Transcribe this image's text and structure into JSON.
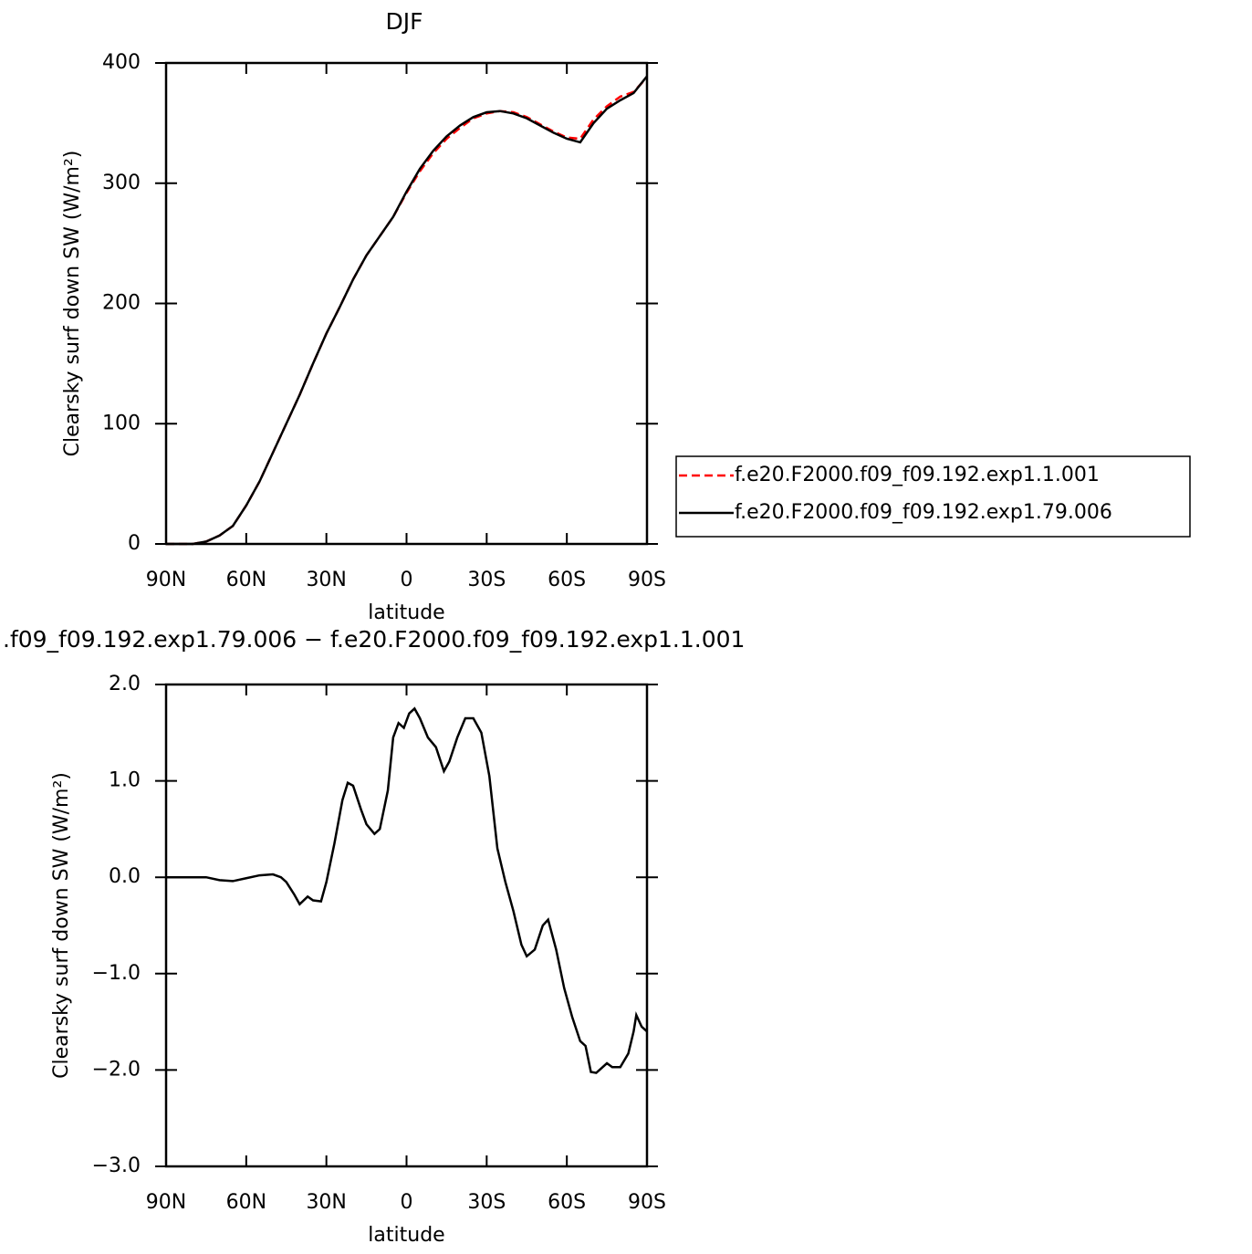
{
  "chart_data": [
    {
      "type": "line",
      "title": "DJF",
      "xlabel": "latitude",
      "ylabel": "Clearsky surf down SW (W/m²)",
      "xlim": [
        90,
        -90
      ],
      "ylim": [
        0,
        400
      ],
      "xticks": [
        {
          "value": 90,
          "label": "90N"
        },
        {
          "value": 60,
          "label": "60N"
        },
        {
          "value": 30,
          "label": "30N"
        },
        0,
        {
          "value": -30,
          "label": "30S"
        },
        {
          "value": -60,
          "label": "60S"
        },
        {
          "value": -90,
          "label": "90S"
        }
      ],
      "yticks": [
        0,
        100,
        200,
        300,
        400
      ],
      "legend": "right",
      "x": [
        90,
        85,
        80,
        75,
        70,
        65,
        60,
        55,
        50,
        45,
        40,
        35,
        30,
        25,
        20,
        15,
        10,
        5,
        0,
        -5,
        -10,
        -15,
        -20,
        -25,
        -30,
        -35,
        -40,
        -45,
        -50,
        -55,
        -60,
        -65,
        -70,
        -75,
        -80,
        -85,
        -90
      ],
      "series": [
        {
          "name": "f.e20.F2000.f09_f09.192.exp1.1.001",
          "color": "#ff0000",
          "dash": "dashed",
          "values": [
            0,
            0,
            0,
            2,
            7,
            15,
            32,
            52,
            76,
            100,
            124,
            150,
            175,
            197,
            220,
            240,
            256,
            272,
            292,
            310,
            325,
            337,
            346,
            354,
            358,
            360,
            359,
            355,
            349,
            343,
            338,
            337,
            353,
            364,
            372,
            376,
            388
          ]
        },
        {
          "name": "f.e20.F2000.f09_f09.192.exp1.79.006",
          "color": "#000000",
          "dash": "solid",
          "values": [
            0,
            0,
            0,
            2,
            7,
            15,
            32,
            52,
            76,
            100,
            124,
            150,
            175,
            197,
            220,
            240,
            256,
            272,
            293,
            312,
            327,
            339,
            348,
            355,
            359,
            360,
            358,
            354,
            348,
            342,
            337,
            334,
            350,
            362,
            369,
            375,
            389
          ]
        }
      ]
    },
    {
      "type": "line",
      "title": ".f09_f09.192.exp1.79.006 − f.e20.F2000.f09_f09.192.exp1.1.001",
      "xlabel": "latitude",
      "ylabel": "Clearsky surf down SW (W/m²)",
      "xlim": [
        90,
        -90
      ],
      "ylim": [
        -3,
        2
      ],
      "xticks": [
        {
          "value": 90,
          "label": "90N"
        },
        {
          "value": 60,
          "label": "60N"
        },
        {
          "value": 30,
          "label": "30N"
        },
        0,
        {
          "value": -30,
          "label": "30S"
        },
        {
          "value": -60,
          "label": "60S"
        },
        {
          "value": -90,
          "label": "90S"
        }
      ],
      "yticks": [
        {
          "value": -3,
          "label": "−3.0"
        },
        {
          "value": -2,
          "label": "−2.0"
        },
        {
          "value": -1,
          "label": "−1.0"
        },
        {
          "value": 0,
          "label": "0.0"
        },
        {
          "value": 1,
          "label": "1.0"
        },
        {
          "value": 2,
          "label": "2.0"
        }
      ],
      "x": [
        90,
        80,
        75,
        70,
        65,
        60,
        55,
        50,
        47,
        45,
        42,
        40,
        37,
        35,
        32,
        30,
        27,
        24,
        22,
        20,
        17,
        15,
        12,
        10,
        7,
        5,
        3,
        1,
        -1,
        -3,
        -5,
        -8,
        -11,
        -14,
        -16,
        -19,
        -22,
        -25,
        -28,
        -31,
        -34,
        -37,
        -40,
        -43,
        -45,
        -48,
        -51,
        -53,
        -56,
        -59,
        -62,
        -65,
        -67,
        -69,
        -71,
        -73,
        -75,
        -77,
        -80,
        -83,
        -85,
        -86,
        -88,
        -90
      ],
      "series": [
        {
          "color": "#000000",
          "dash": "solid",
          "values": [
            0,
            0,
            0,
            -0.03,
            -0.04,
            -0.01,
            0.02,
            0.03,
            0,
            -0.05,
            -0.18,
            -0.28,
            -0.2,
            -0.24,
            -0.25,
            -0.05,
            0.35,
            0.8,
            0.98,
            0.95,
            0.7,
            0.55,
            0.45,
            0.5,
            0.9,
            1.45,
            1.6,
            1.55,
            1.7,
            1.75,
            1.65,
            1.45,
            1.35,
            1.1,
            1.2,
            1.45,
            1.65,
            1.65,
            1.5,
            1.05,
            0.3,
            -0.05,
            -0.35,
            -0.7,
            -0.82,
            -0.75,
            -0.5,
            -0.44,
            -0.75,
            -1.15,
            -1.45,
            -1.7,
            -1.75,
            -2.02,
            -2.03,
            -1.98,
            -1.93,
            -1.97,
            -1.97,
            -1.83,
            -1.6,
            -1.43,
            -1.55,
            -1.6
          ]
        }
      ]
    }
  ]
}
